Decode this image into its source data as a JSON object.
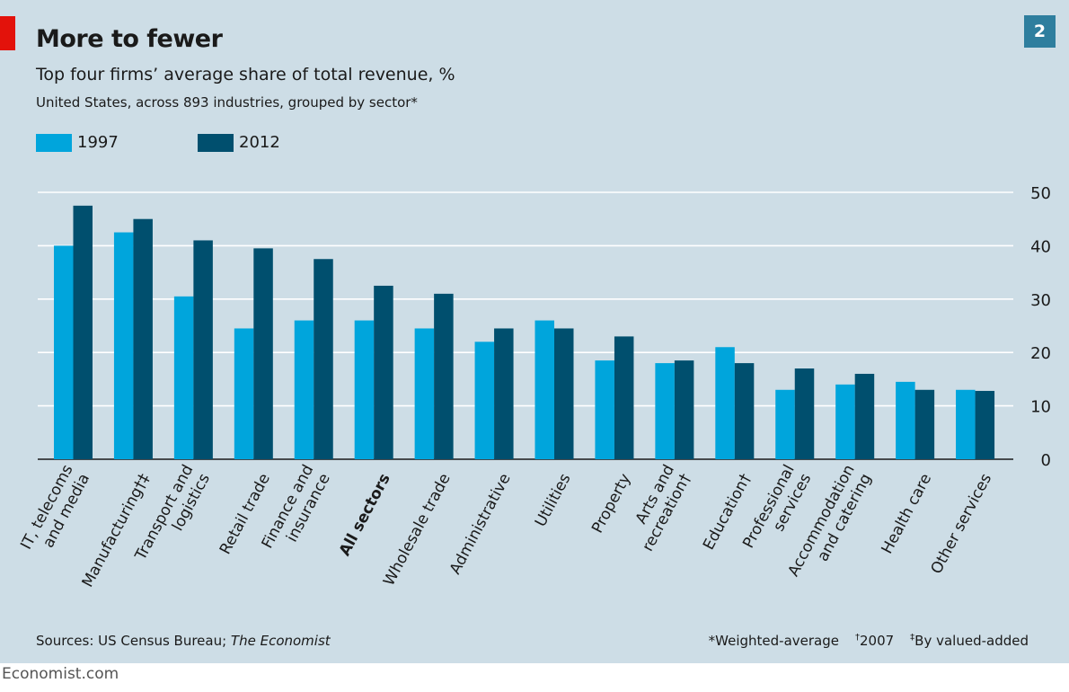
{
  "header": {
    "title": "More to fewer",
    "badge": "2",
    "subtitle": "Top four firms’ average share of total revenue, %",
    "subtitle2": "United States, across 893 industries, grouped by sector*"
  },
  "colors": {
    "background": "#cddde6",
    "series_1997": "#00a5dc",
    "series_2012": "#004f6e",
    "accent_red": "#e3120b",
    "badge": "#2e7e9e"
  },
  "chart_data": {
    "type": "bar",
    "categories": [
      "IT, telecoms and media",
      "Manufacturing†‡",
      "Transport and logistics",
      "Retail trade",
      "Finance and insurance",
      "All sectors",
      "Wholesale trade",
      "Administrative",
      "Utilities",
      "Property",
      "Arts and recreation†",
      "Education†",
      "Professional services",
      "Accommodation and catering",
      "Health care",
      "Other services"
    ],
    "category_label_lines": [
      [
        "IT, telecoms",
        "and media"
      ],
      [
        "Manufacturing†‡"
      ],
      [
        "Transport and",
        "logistics"
      ],
      [
        "Retail trade"
      ],
      [
        "Finance and",
        "insurance"
      ],
      [
        "All sectors"
      ],
      [
        "Wholesale trade"
      ],
      [
        "Administrative"
      ],
      [
        "Utilities"
      ],
      [
        "Property"
      ],
      [
        "Arts and",
        "recreation†"
      ],
      [
        "Education†"
      ],
      [
        "Professional",
        "services"
      ],
      [
        "Accommodation",
        "and catering"
      ],
      [
        "Health care"
      ],
      [
        "Other services"
      ]
    ],
    "bold_categories": [
      "All sectors"
    ],
    "series": [
      {
        "name": "1997",
        "values": [
          40,
          42.5,
          30.5,
          24.5,
          26,
          26,
          24.5,
          22,
          26,
          18.5,
          18,
          21,
          13,
          14,
          14.5,
          13
        ]
      },
      {
        "name": "2012",
        "values": [
          47.5,
          45,
          41,
          39.5,
          37.5,
          32.5,
          31,
          24.5,
          24.5,
          23,
          18.5,
          18,
          17,
          16,
          13,
          12.8
        ]
      }
    ],
    "ylim": [
      0,
      50
    ],
    "yticks": [
      "0",
      "10",
      "20",
      "30",
      "40",
      "50"
    ],
    "ytick_values": [
      0,
      10,
      20,
      30,
      40,
      50
    ],
    "y_axis_side": "right",
    "grid": true,
    "legend_position": "top-left",
    "xlabel": "",
    "ylabel": ""
  },
  "footer": {
    "sources_prefix": "Sources: US Census Bureau; ",
    "sources_italic": "The Economist",
    "note_weighted": "*Weighted-average",
    "note_dagger_mark": "†",
    "note_dagger_text": "2007",
    "note_ddagger_mark": "‡",
    "note_ddagger_text": "By valued-added"
  },
  "brand": "Economist.com"
}
